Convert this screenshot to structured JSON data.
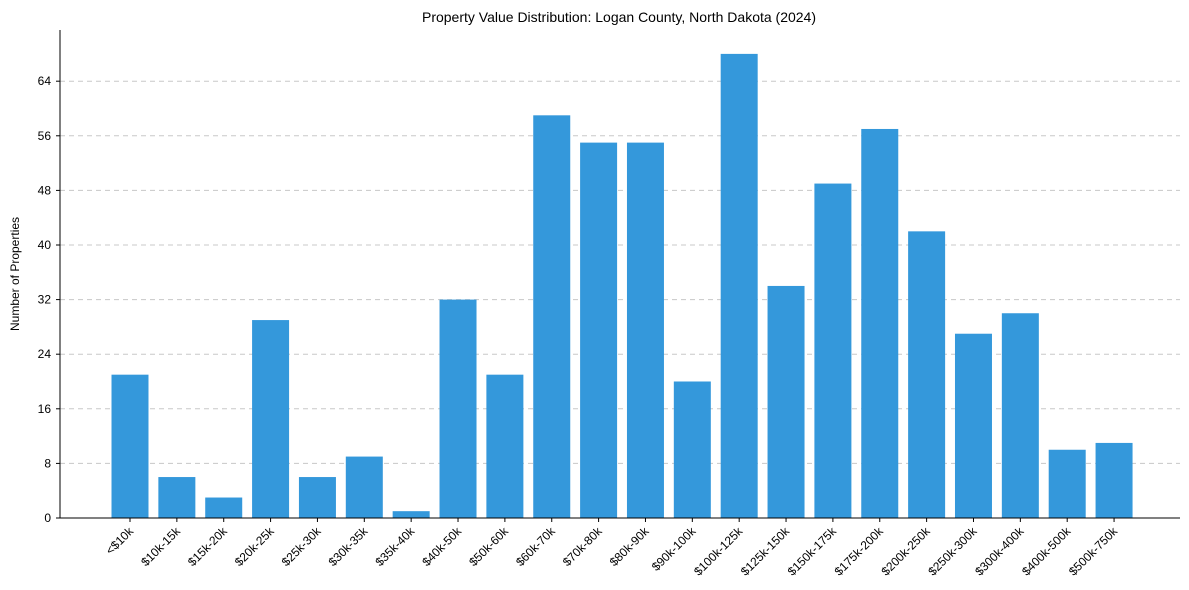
{
  "chart_data": {
    "type": "bar",
    "title": "Property Value Distribution: Logan County, North Dakota (2024)",
    "xlabel": "",
    "ylabel": "Number of Properties",
    "ylim": [
      0,
      71.5
    ],
    "yticks": [
      0,
      8,
      16,
      24,
      32,
      40,
      48,
      56,
      64
    ],
    "grid": "y-dashed",
    "bar_color": "#3498db",
    "categories": [
      "<$10k",
      "$10k-15k",
      "$15k-20k",
      "$20k-25k",
      "$25k-30k",
      "$30k-35k",
      "$35k-40k",
      "$40k-50k",
      "$50k-60k",
      "$60k-70k",
      "$70k-80k",
      "$80k-90k",
      "$90k-100k",
      "$100k-125k",
      "$125k-150k",
      "$150k-175k",
      "$175k-200k",
      "$200k-250k",
      "$250k-300k",
      "$300k-400k",
      "$400k-500k",
      "$500k-750k"
    ],
    "values": [
      21,
      6,
      3,
      29,
      6,
      9,
      1,
      32,
      21,
      59,
      55,
      55,
      20,
      68,
      34,
      49,
      57,
      42,
      27,
      30,
      10,
      11
    ]
  }
}
